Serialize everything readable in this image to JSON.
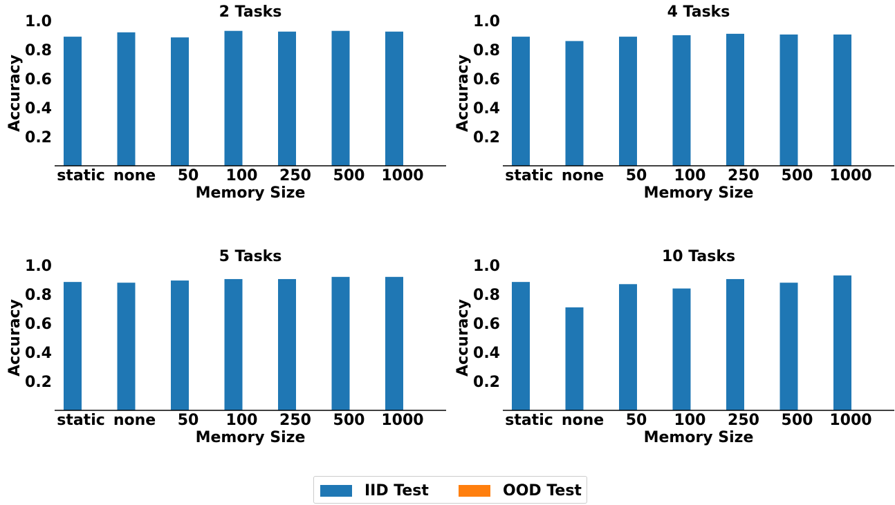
{
  "chart_data": [
    {
      "type": "bar",
      "title": "2 Tasks",
      "xlabel": "Memory Size",
      "ylabel": "Accuracy",
      "categories": [
        "static",
        "none",
        "50",
        "100",
        "250",
        "500",
        "1000"
      ],
      "series": [
        {
          "name": "IID Test",
          "values": [
            0.89,
            0.92,
            0.885,
            0.93,
            0.925,
            0.93,
            0.925
          ]
        },
        {
          "name": "OOD Test",
          "values": [
            0,
            0,
            0,
            0,
            0,
            0,
            0
          ]
        }
      ],
      "ylim": [
        0,
        1.0
      ],
      "yticks": [
        "0.2",
        "0.4",
        "0.6",
        "0.8",
        "1.0"
      ]
    },
    {
      "type": "bar",
      "title": "4 Tasks",
      "xlabel": "Memory Size",
      "ylabel": "Accuracy",
      "categories": [
        "static",
        "none",
        "50",
        "100",
        "250",
        "500",
        "1000"
      ],
      "series": [
        {
          "name": "IID Test",
          "values": [
            0.89,
            0.86,
            0.89,
            0.9,
            0.91,
            0.905,
            0.905
          ]
        },
        {
          "name": "OOD Test",
          "values": [
            0,
            0,
            0,
            0,
            0,
            0,
            0
          ]
        }
      ],
      "ylim": [
        0,
        1.0
      ],
      "yticks": [
        "0.2",
        "0.4",
        "0.6",
        "0.8",
        "1.0"
      ]
    },
    {
      "type": "bar",
      "title": "5 Tasks",
      "xlabel": "Memory Size",
      "ylabel": "Accuracy",
      "categories": [
        "static",
        "none",
        "50",
        "100",
        "250",
        "500",
        "1000"
      ],
      "series": [
        {
          "name": "IID Test",
          "values": [
            0.885,
            0.88,
            0.895,
            0.905,
            0.905,
            0.92,
            0.92
          ]
        },
        {
          "name": "OOD Test",
          "values": [
            0,
            0,
            0,
            0,
            0,
            0,
            0
          ]
        }
      ],
      "ylim": [
        0,
        1.0
      ],
      "yticks": [
        "0.2",
        "0.4",
        "0.6",
        "0.8",
        "1.0"
      ]
    },
    {
      "type": "bar",
      "title": "10 Tasks",
      "xlabel": "Memory Size",
      "ylabel": "Accuracy",
      "categories": [
        "static",
        "none",
        "50",
        "100",
        "250",
        "500",
        "1000"
      ],
      "series": [
        {
          "name": "IID Test",
          "values": [
            0.885,
            0.71,
            0.87,
            0.84,
            0.905,
            0.88,
            0.93
          ]
        },
        {
          "name": "OOD Test",
          "values": [
            0,
            0,
            0,
            0,
            0,
            0,
            0
          ]
        }
      ],
      "ylim": [
        0,
        1.0
      ],
      "yticks": [
        "0.2",
        "0.4",
        "0.6",
        "0.8",
        "1.0"
      ]
    }
  ],
  "legend": {
    "position": "bottom-center",
    "items": [
      {
        "label": "IID Test",
        "color": "#1f77b4"
      },
      {
        "label": "OOD Test",
        "color": "#ff7f0e"
      }
    ]
  }
}
